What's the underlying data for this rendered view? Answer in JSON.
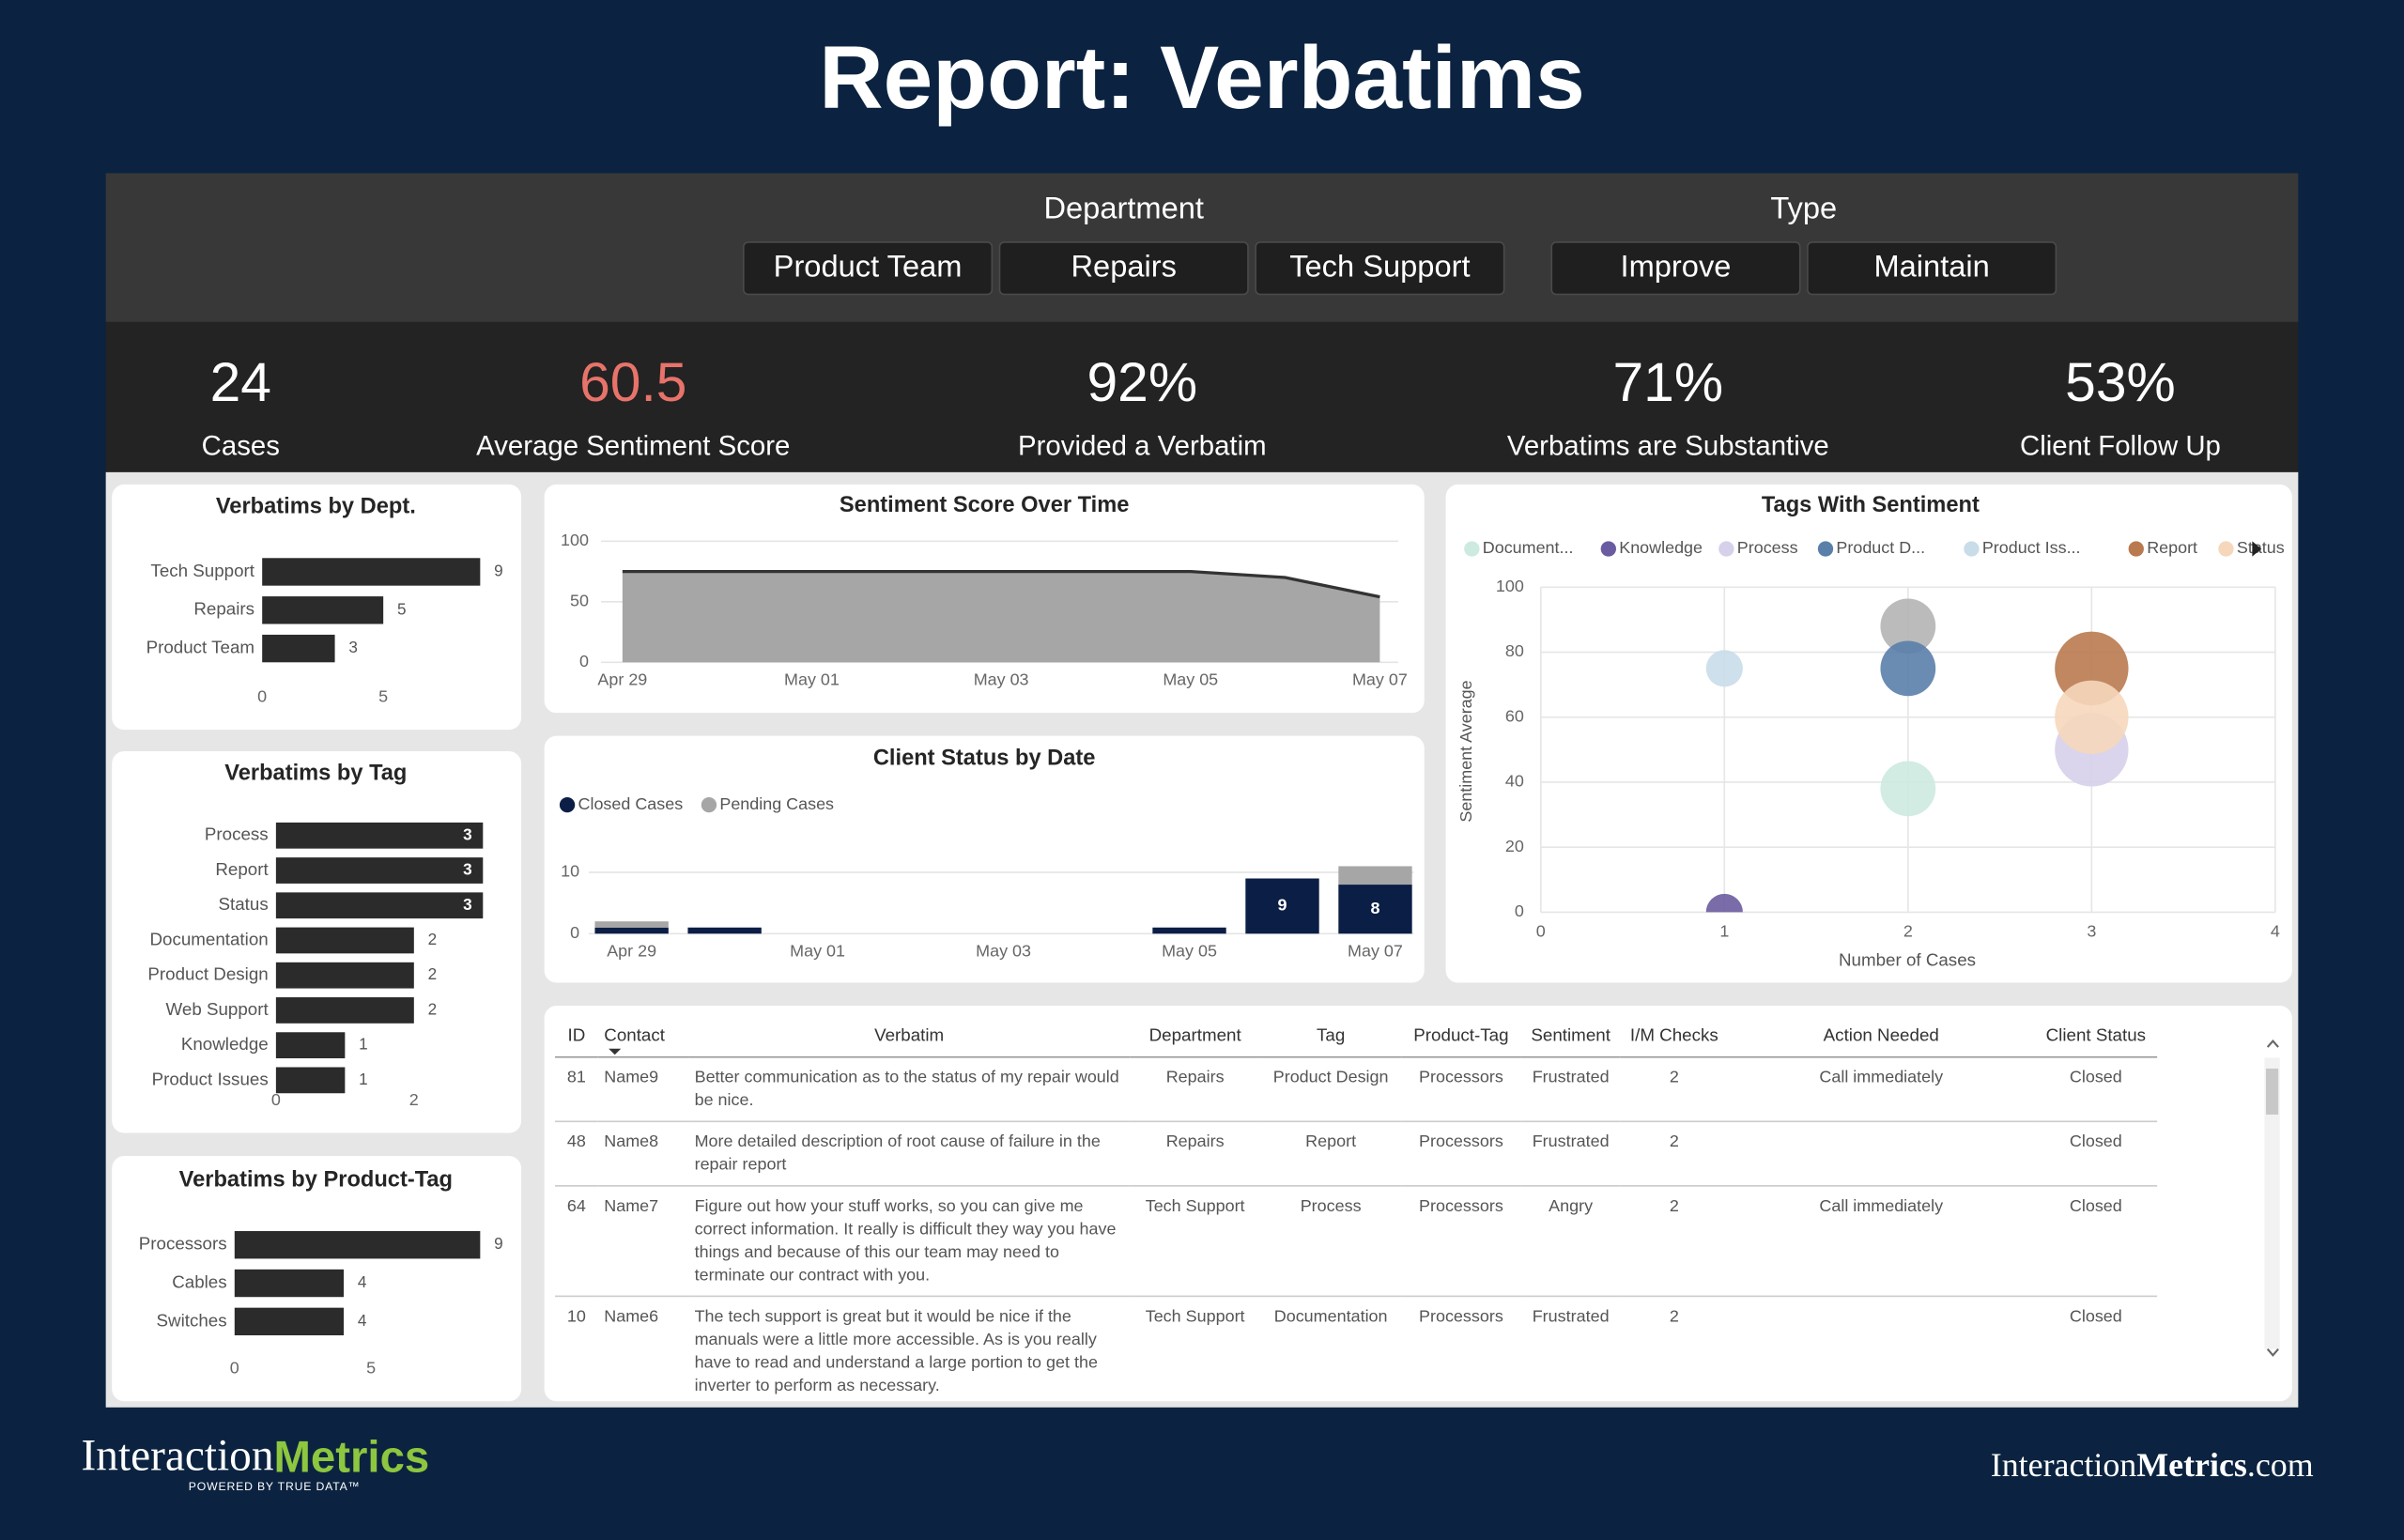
{
  "title": "Report: Verbatims",
  "filters": [
    {
      "label": "Department",
      "options": [
        "Product Team",
        "Repairs",
        "Tech Support"
      ]
    },
    {
      "label": "Type",
      "options": [
        "Improve",
        "Maintain"
      ]
    }
  ],
  "kpis": [
    {
      "value": 24,
      "label": "Cases"
    },
    {
      "value": 60.5,
      "label": "Average Sentiment Score",
      "color": "#e8736a"
    },
    {
      "value": "92%",
      "label": "Provided a Verbatim"
    },
    {
      "value": "71%",
      "label": "Verbatims are Substantive"
    },
    {
      "value": "53%",
      "label": "Client Follow Up"
    }
  ],
  "chart_data": [
    {
      "type": "hbar",
      "title": "Verbatims by Dept.",
      "categories": [
        "Tech Support",
        "Repairs",
        "Product Team"
      ],
      "values": [
        9,
        5,
        3
      ],
      "color": "#2b2b2b",
      "xlim": [
        0,
        10
      ],
      "xticks": [
        0,
        5
      ]
    },
    {
      "type": "hbar",
      "title": "Verbatims by Tag",
      "categories": [
        "Process",
        "Report",
        "Status",
        "Documentation",
        "Product Design",
        "Web Support",
        "Knowledge",
        "Product Issues"
      ],
      "values": [
        3,
        3,
        3,
        2,
        2,
        2,
        1,
        1
      ],
      "color": "#2b2b2b",
      "xlim": [
        0,
        3
      ],
      "xticks": [
        0,
        2
      ]
    },
    {
      "type": "hbar",
      "title": "Verbatims by Product-Tag",
      "categories": [
        "Processors",
        "Cables",
        "Switches"
      ],
      "values": [
        9,
        4,
        4
      ],
      "color": "#2b2b2b",
      "xlim": [
        0,
        10
      ],
      "xticks": [
        0,
        5
      ]
    },
    {
      "type": "area",
      "title": "Sentiment Score Over Time",
      "categories": [
        "Apr 29",
        null,
        "May 01",
        null,
        "May 03",
        null,
        "May 05",
        null,
        "May 07"
      ],
      "values": [
        75,
        75,
        75,
        75,
        75,
        75,
        75,
        70,
        54
      ],
      "color": "#a6a6a6",
      "line_color": "#333333",
      "ylim": [
        0,
        100
      ],
      "yticks": [
        0,
        50,
        100
      ],
      "grid": true
    },
    {
      "type": "stacked_bar",
      "title": "Client Status by Date",
      "categories": [
        "Apr 29",
        null,
        "May 01",
        null,
        "May 03",
        null,
        "May 05",
        null,
        "May 07"
      ],
      "series": [
        {
          "name": "Closed Cases",
          "color": "#0b1e45",
          "values": [
            1,
            1,
            0,
            0,
            0,
            0,
            1,
            9,
            8
          ],
          "value_labels": [
            null,
            null,
            null,
            null,
            null,
            null,
            null,
            "9",
            "8"
          ]
        },
        {
          "name": "Pending Cases",
          "color": "#a6a6a6",
          "values": [
            1,
            0,
            0,
            0,
            0,
            0,
            0,
            0,
            3
          ]
        }
      ],
      "ylim": [
        0,
        12
      ],
      "yticks": [
        0,
        10
      ],
      "grid": true,
      "legend": "top-left"
    },
    {
      "type": "bubble",
      "title": "Tags With Sentiment",
      "x_label": "Number of Cases",
      "y_label": "Sentiment Average",
      "series": [
        {
          "name": null,
          "color": "#b4b4b4",
          "x": [
            2
          ],
          "values": [
            88
          ],
          "sizes": [
            2
          ]
        },
        {
          "name": "Document...",
          "color": "#cdeae0",
          "x": [
            2
          ],
          "values": [
            38
          ],
          "sizes": [
            2
          ]
        },
        {
          "name": "Knowledge",
          "color": "#6b5ba0",
          "x": [
            1
          ],
          "values": [
            0
          ],
          "sizes": [
            1
          ]
        },
        {
          "name": "Process",
          "color": "#d6d0ea",
          "x": [
            3
          ],
          "values": [
            50
          ],
          "sizes": [
            3
          ]
        },
        {
          "name": "Product D...",
          "color": "#5a80aa",
          "x": [
            2
          ],
          "values": [
            75
          ],
          "sizes": [
            2
          ]
        },
        {
          "name": "Product Iss...",
          "color": "#c9dde9",
          "x": [
            1
          ],
          "values": [
            75
          ],
          "sizes": [
            1
          ]
        },
        {
          "name": "Report",
          "color": "#b97a4f",
          "x": [
            3
          ],
          "values": [
            75
          ],
          "sizes": [
            3
          ]
        },
        {
          "name": "Status",
          "color": "#f6d7bb",
          "x": [
            3
          ],
          "values": [
            60
          ],
          "sizes": [
            3
          ]
        }
      ],
      "xlim": [
        0,
        4
      ],
      "xticks": [
        0,
        1,
        2,
        3,
        4
      ],
      "ylim": [
        0,
        100
      ],
      "yticks": [
        0,
        20,
        40,
        60,
        80,
        100
      ],
      "grid": true,
      "legend": "top"
    }
  ],
  "table": {
    "columns": [
      "ID",
      "Contact",
      "Verbatim",
      "Department",
      "Tag",
      "Product-Tag",
      "Sentiment",
      "I/M Checks",
      "Action Needed",
      "Client Status"
    ],
    "rows": [
      [
        81,
        "Name9",
        "Better communication as to the status of my repair would be nice.",
        "Repairs",
        "Product Design",
        "Processors",
        "Frustrated",
        2,
        "Call immediately",
        "Closed"
      ],
      [
        48,
        "Name8",
        "More detailed description of root cause of failure in the repair report",
        "Repairs",
        "Report",
        "Processors",
        "Frustrated",
        2,
        null,
        "Closed"
      ],
      [
        64,
        "Name7",
        "Figure out how your stuff works, so you can give me correct information. It really is difficult they way you have things and because of this our team may need to terminate our contract with you.",
        "Tech Support",
        "Process",
        "Processors",
        "Angry",
        2,
        "Call immediately",
        "Closed"
      ],
      [
        10,
        "Name6",
        "The tech support is great but it would be nice if the manuals were a little more accessible. As is you really have to read and understand a large portion to get the inverter to perform as necessary.",
        "Tech Support",
        "Documentation",
        "Processors",
        "Frustrated",
        2,
        null,
        "Closed"
      ]
    ]
  },
  "footer": {
    "logo": {
      "parts": [
        "Interaction",
        "Metrics"
      ],
      "tagline": "POWERED BY TRUE DATA™"
    },
    "site": {
      "parts": [
        "Interaction",
        "Metrics",
        ".com"
      ]
    }
  }
}
